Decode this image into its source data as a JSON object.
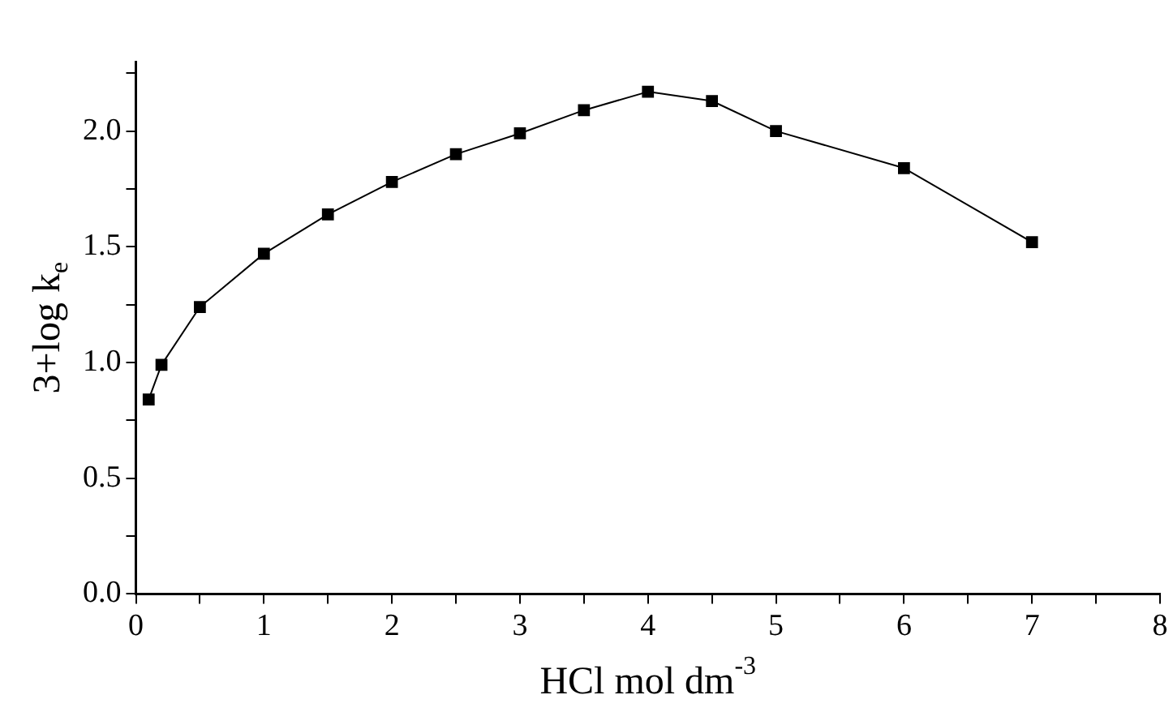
{
  "chart_data": {
    "type": "line",
    "xlabel": "HCl mol dm$^{-3}$",
    "ylabel": "3+log k$_{e}$",
    "marker": "square",
    "line_style": "solid",
    "x": [
      0.1,
      0.2,
      0.5,
      1,
      1.5,
      2,
      2.5,
      3,
      3.5,
      4,
      4.5,
      5,
      6,
      7
    ],
    "series": [
      {
        "color": "#000000",
        "values": [
          0.84,
          0.99,
          1.24,
          1.47,
          1.64,
          1.78,
          1.9,
          1.99,
          2.09,
          2.17,
          2.13,
          2.0,
          1.84,
          1.52
        ]
      }
    ],
    "xlim": [
      0,
      8
    ],
    "xticks": [
      0,
      {
        "value": 0.5,
        "label": null
      },
      1,
      {
        "value": 1.5,
        "label": null
      },
      2,
      {
        "value": 2.5,
        "label": null
      },
      3,
      {
        "value": 3.5,
        "label": null
      },
      4,
      {
        "value": 4.5,
        "label": null
      },
      5,
      {
        "value": 5.5,
        "label": null
      },
      6,
      {
        "value": 6.5,
        "label": null
      },
      7,
      {
        "value": 7.5,
        "label": null
      },
      8
    ],
    "ylim": [
      0,
      2.3
    ],
    "yticks": [
      {
        "value": 0,
        "label": "0.0"
      },
      {
        "value": 0.25,
        "label": null
      },
      {
        "value": 0.5,
        "label": "0.5"
      },
      {
        "value": 0.75,
        "label": null
      },
      {
        "value": 1,
        "label": "1.0"
      },
      {
        "value": 1.25,
        "label": null
      },
      {
        "value": 1.5,
        "label": "1.5"
      },
      {
        "value": 1.75,
        "label": null
      },
      {
        "value": 2,
        "label": "2.0"
      },
      {
        "value": 2.25,
        "label": null
      }
    ]
  }
}
